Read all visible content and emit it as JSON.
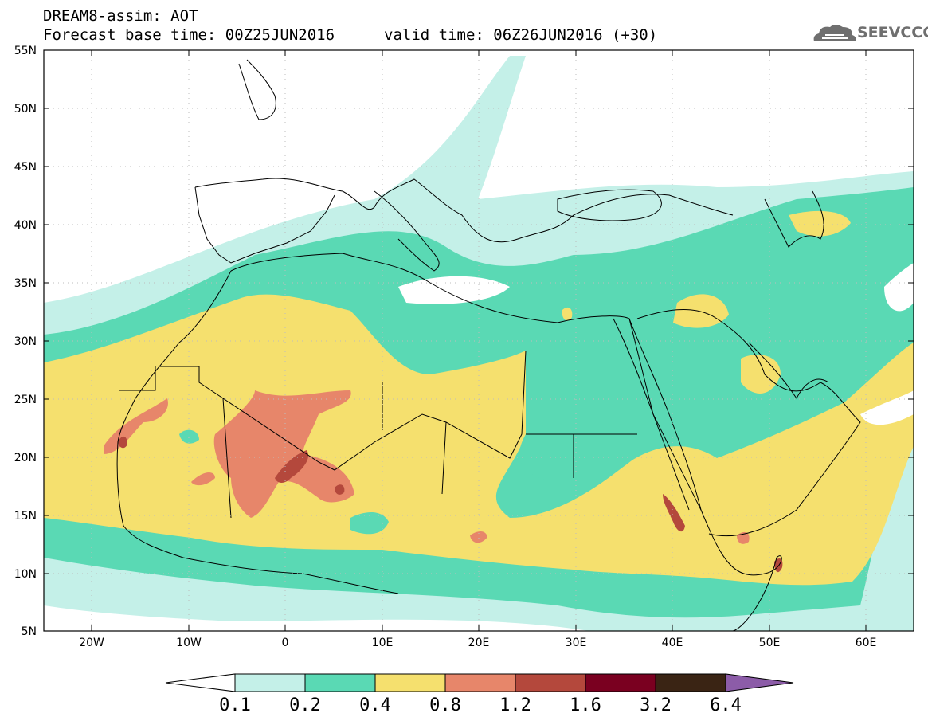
{
  "header": {
    "title": "DREAM8-assim: AOT",
    "base_time": "Forecast base time: 00Z25JUN2016",
    "valid_time": "valid time: 06Z26JUN2016 (+30)",
    "logo_text": "SEEVCCC"
  },
  "axes": {
    "lat_labels": [
      "55N",
      "50N",
      "45N",
      "40N",
      "35N",
      "30N",
      "25N",
      "20N",
      "15N",
      "10N",
      "5N"
    ],
    "lon_labels": [
      "20W",
      "10W",
      "0",
      "10E",
      "20E",
      "30E",
      "40E",
      "50E",
      "60E"
    ]
  },
  "legend": {
    "colors": [
      "#ffffff",
      "#c4f0e8",
      "#5ad9b4",
      "#f5e06e",
      "#e7866a",
      "#b4483c",
      "#7a0020",
      "#3a2414",
      "#8c5ca8"
    ],
    "labels": [
      "0.1",
      "0.2",
      "0.4",
      "0.8",
      "1.2",
      "1.6",
      "3.2",
      "6.4"
    ]
  }
}
